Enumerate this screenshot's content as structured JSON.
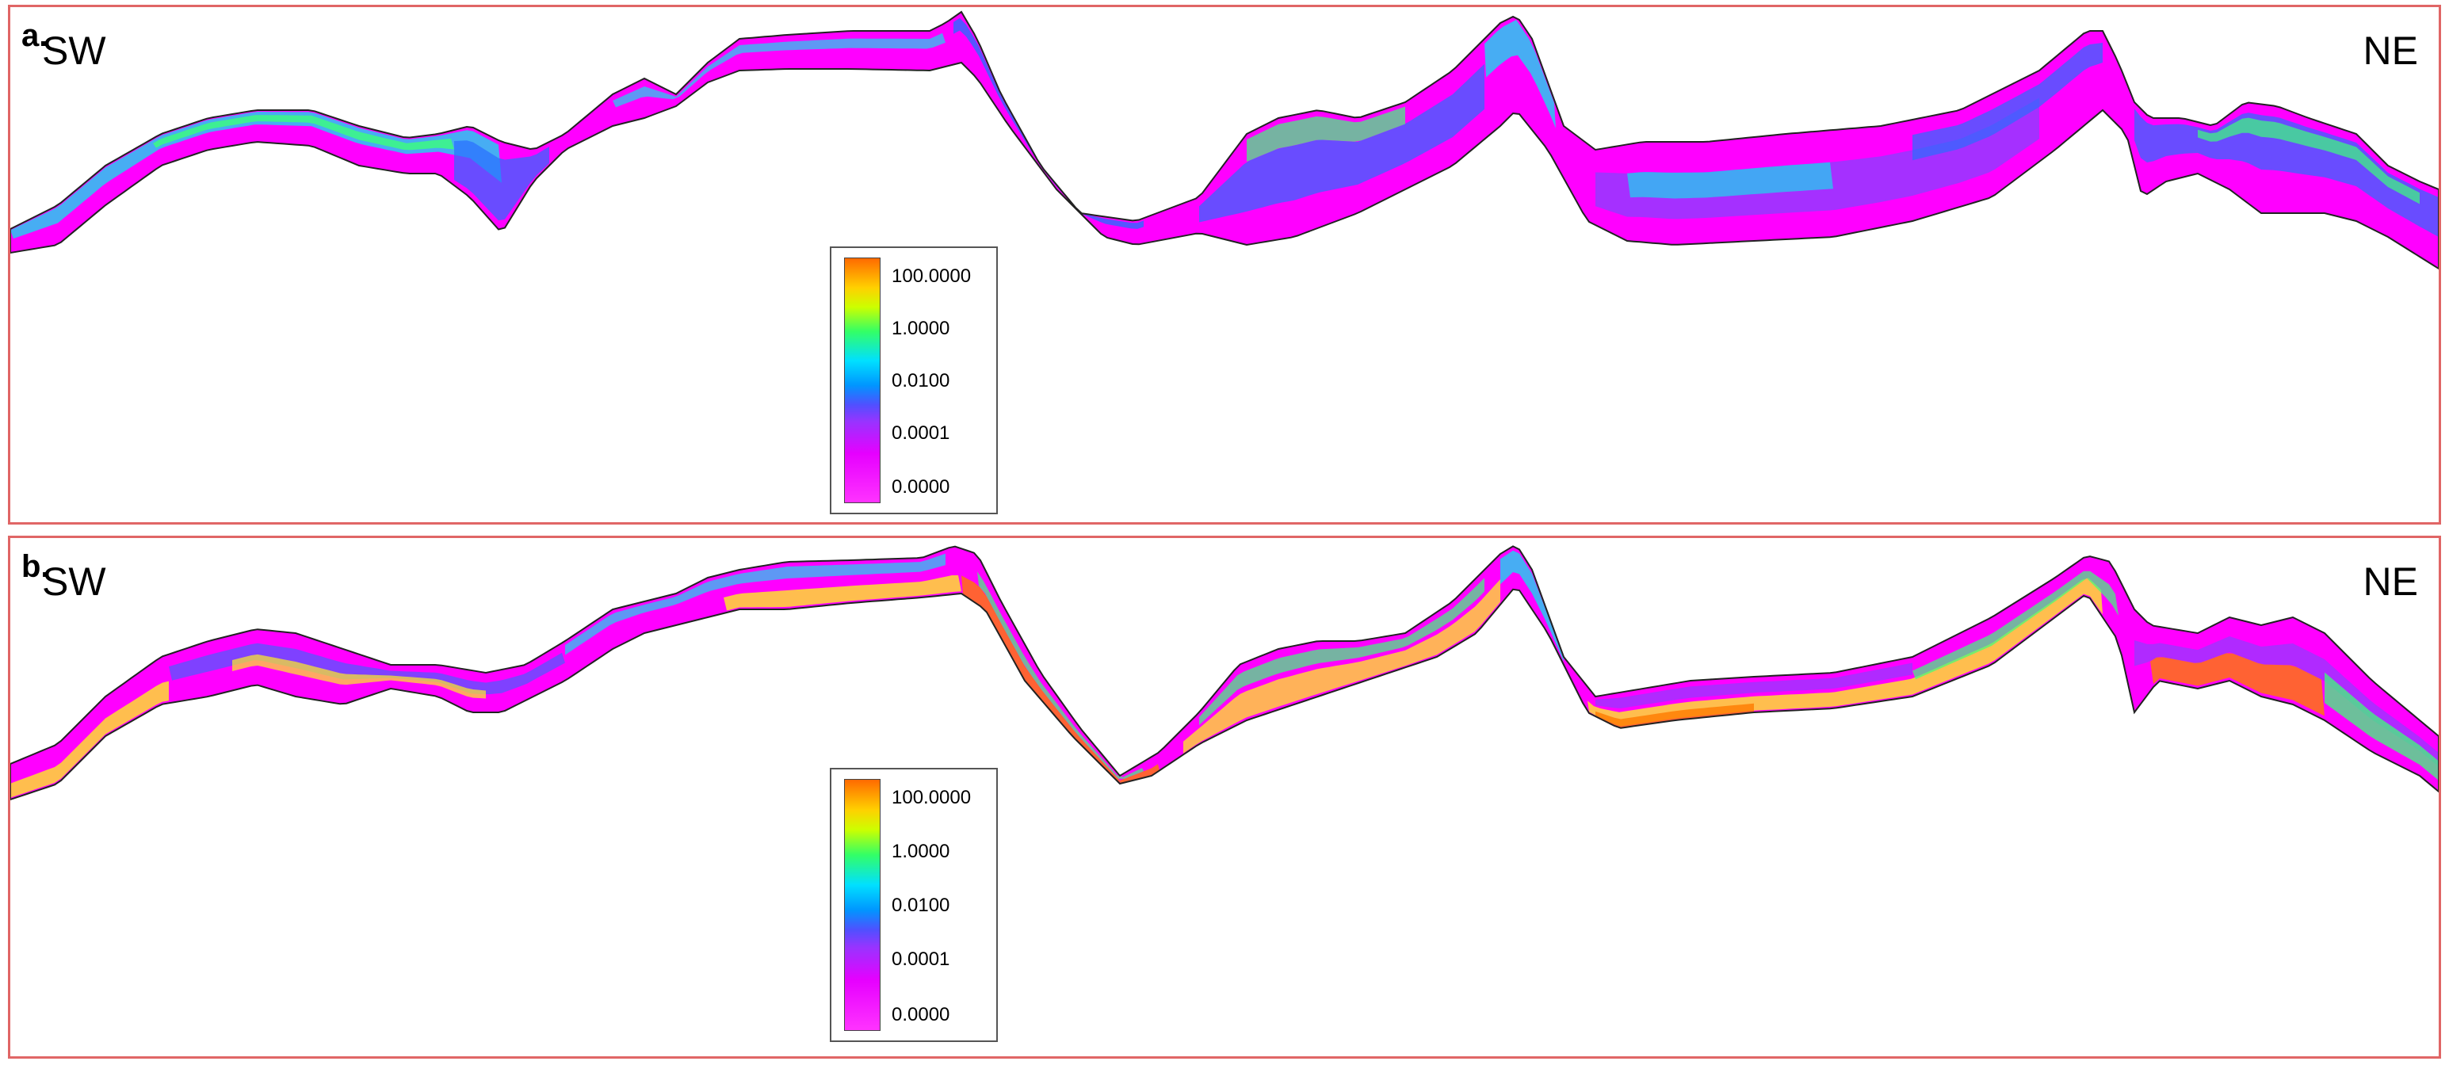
{
  "panels": [
    {
      "letter": "a.",
      "left_label": "SW",
      "right_label": "NE",
      "legend": [
        "100.0000",
        "1.0000",
        "0.0100",
        "0.0001",
        "0.0000"
      ]
    },
    {
      "letter": "b.",
      "left_label": "SW",
      "right_label": "NE",
      "legend": [
        "100.0000",
        "1.0000",
        "0.0100",
        "0.0001",
        "0.0000"
      ]
    }
  ],
  "colors": {
    "frame": "#e06666",
    "low": "#ff00ff",
    "mid_purple": "#8f3cff",
    "mid_blue": "#2a6cff",
    "cyan": "#19d8f0",
    "green": "#3cff7a",
    "yellow": "#ffee22",
    "orange": "#ff7a00"
  }
}
